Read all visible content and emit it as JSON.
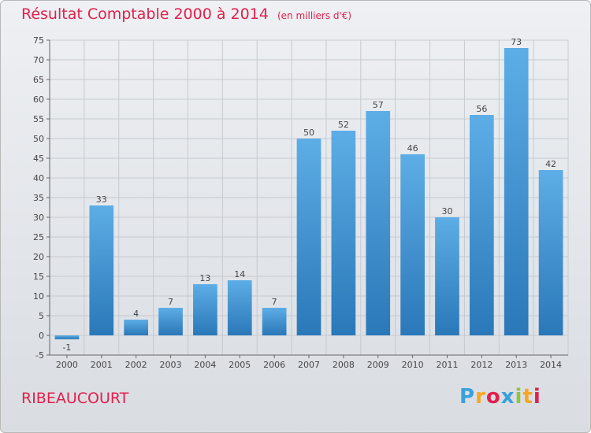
{
  "header": {
    "title": "Résultat Comptable 2000 à 2014",
    "subtitle": "(en milliers d'€)"
  },
  "commune": "RIBEAUCOURT",
  "logo": {
    "letters": [
      "P",
      "r",
      "o",
      "x",
      "i",
      "t",
      "i"
    ],
    "colors": [
      "#3aa0dc",
      "#f5a623",
      "#e2204c",
      "#3aa0dc",
      "#8cc63f",
      "#f5a623",
      "#e2204c"
    ]
  },
  "chart_data": {
    "type": "bar",
    "title": "Résultat Comptable 2000 à 2014",
    "subtitle": "(en milliers d'€)",
    "categories": [
      "2000",
      "2001",
      "2002",
      "2003",
      "2004",
      "2005",
      "2006",
      "2007",
      "2008",
      "2009",
      "2010",
      "2011",
      "2012",
      "2013",
      "2014"
    ],
    "values": [
      -1,
      33,
      4,
      7,
      13,
      14,
      7,
      50,
      52,
      57,
      46,
      30,
      56,
      73,
      42
    ],
    "ylim": [
      -5,
      75
    ],
    "yticks": [
      -5,
      0,
      5,
      10,
      15,
      20,
      25,
      30,
      35,
      40,
      45,
      50,
      55,
      60,
      65,
      70,
      75
    ],
    "grid": true,
    "bar_color_top": "#5dade6",
    "bar_color_bottom": "#2a78b8"
  }
}
